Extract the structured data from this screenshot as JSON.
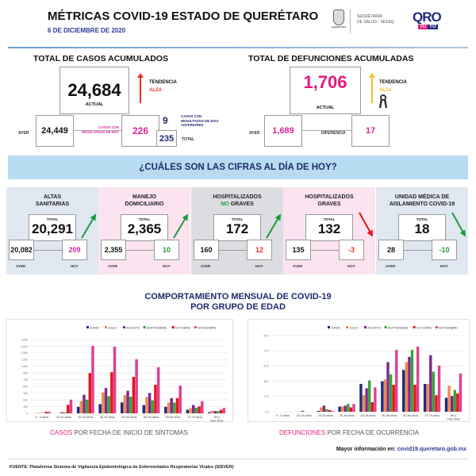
{
  "header": {
    "title": "MÉTRICAS COVID-19 ESTADO DE QUERÉTARO",
    "date": "6 DE DICIEMBRE DE 2020",
    "logo_gov": "QUERÉTARO",
    "secretaria": "SECRETARÍA",
    "secretaria2": "DE SALUD - SESEQ",
    "logo_qro": "QRO",
    "logo_tuyo_1": "TÚ",
    "logo_tuyo_2": "YO"
  },
  "casos": {
    "title": "TOTAL DE CASOS ACUMULADOS",
    "actual": "24,684",
    "actual_label": "ACTUAL",
    "tendencia": "TENDENCIA",
    "tendencia_val": "ALZA",
    "ayer_label": "AYER",
    "ayer": "24,449",
    "hoy_label": "CASOS CON RESULTADOS DE HOY",
    "hoy": "226",
    "anteriores": "9",
    "anteriores_label": "CASOS CON RESULTADOS DE DÍAS ANTERIORES",
    "total": "235",
    "total_label": "TOTAL"
  },
  "defunciones": {
    "title": "TOTAL DE DEFUNCIONES ACUMULADAS",
    "actual": "1,706",
    "actual_label": "ACTUAL",
    "tendencia": "TENDENCIA",
    "tendencia_val": "ALZA",
    "ayer_label": "AYER",
    "ayer": "1,689",
    "diferencia_label": "DIFERENCIA",
    "diferencia": "17"
  },
  "banner": "¿CUÁLES SON LAS CIFRAS AL DÍA DE HOY?",
  "cards": [
    {
      "title1": "ALTAS",
      "title2": "SANITARIAS",
      "title2_pre": "",
      "total_label": "TOTAL",
      "total": "20,291",
      "ayer": "20,082",
      "hoy": "209",
      "ayer_label": "AYER",
      "hoy_label": "HOY",
      "hoy_color": "#d8259a",
      "trend": "up",
      "trend_color": "#1f9a3a",
      "bg": "#dfe7f1"
    },
    {
      "title1": "MANEJO",
      "title2": "DOMICILIARIO",
      "title2_pre": "",
      "total_label": "TOTAL",
      "total": "2,365",
      "ayer": "2,355",
      "hoy": "10",
      "ayer_label": "AYER",
      "hoy_label": "HOY",
      "hoy_color": "#1f9a3a",
      "trend": "up",
      "trend_color": "#1f9a3a",
      "bg": "#fbe4f0"
    },
    {
      "title1": "HOSPITALIZADOS",
      "title2": "GRAVES",
      "title2_pre": "NO ",
      "total_label": "TOTAL",
      "total": "172",
      "ayer": "160",
      "hoy": "12",
      "ayer_label": "AYER",
      "hoy_label": "HOY",
      "hoy_color": "#e53322",
      "trend": "up",
      "trend_color": "#1f9a3a",
      "bg": "#dcdde1"
    },
    {
      "title1": "HOSPITALIZADOS",
      "title2": "GRAVES",
      "title2_pre": "",
      "total_label": "TOTAL",
      "total": "132",
      "ayer": "135",
      "hoy": "-3",
      "ayer_label": "AYER",
      "hoy_label": "HOY",
      "hoy_color": "#e53322",
      "trend": "down",
      "trend_color": "#e0141b",
      "bg": "#fbe4f0"
    },
    {
      "title1": "UNIDAD MÉDICA DE",
      "title2": "AISLAMIENTO COVID-19",
      "title2_pre": "",
      "total_label": "TOTAL",
      "total": "18",
      "ayer": "28",
      "hoy": "-10",
      "ayer_label": "AYER",
      "hoy_label": "HOY",
      "hoy_color": "#1f9a3a",
      "trend": "down",
      "trend_color": "#1f9a3a",
      "bg": "#dfe7f1"
    }
  ],
  "section_title_1": "COMPORTAMIENTO MENSUAL DE COVID-19",
  "section_title_2": "POR GRUPO DE EDAD",
  "chart_data": [
    {
      "type": "bar",
      "categories": [
        "0 - 9 años",
        "10-19 años",
        "20-29 años",
        "30-39 años",
        "40-49 años",
        "50-59 años",
        "60-69 años",
        "70-79 años",
        "80 y mas años"
      ],
      "yticks": [
        "0",
        "150",
        "300",
        "450",
        "600",
        "750",
        "900",
        "1,050",
        "1,200",
        "1,350",
        "1,500",
        "1,650"
      ],
      "ylim": [
        0,
        1650
      ],
      "grid": true,
      "legend": "top",
      "series": [
        {
          "name": "JUNIO",
          "color": "#1f2a80",
          "values": [
            0,
            0,
            145,
            205,
            245,
            185,
            145,
            80,
            25
          ]
        },
        {
          "name": "JULIO",
          "color": "#f08a4b",
          "values": [
            10,
            10,
            275,
            470,
            410,
            365,
            240,
            120,
            60
          ]
        },
        {
          "name": "AGOSTO",
          "color": "#7b2a8c",
          "values": [
            5,
            25,
            415,
            565,
            505,
            455,
            340,
            185,
            50
          ]
        },
        {
          "name": "SEPTIEMBRE",
          "color": "#3aa33a",
          "values": [
            5,
            20,
            305,
            385,
            370,
            290,
            240,
            125,
            50
          ]
        },
        {
          "name": "OCTUBRE",
          "color": "#e8141b",
          "values": [
            35,
            190,
            900,
            920,
            815,
            640,
            340,
            155,
            80
          ]
        },
        {
          "name": "NOVIEMBRE",
          "color": "#e0408f",
          "values": [
            35,
            305,
            1505,
            1490,
            1210,
            1030,
            620,
            270,
            120
          ]
        }
      ],
      "caption_highlight": "CASOS",
      "caption_rest": " POR FECHA DE INICIO DE SÍNTOMAS"
    },
    {
      "type": "bar",
      "categories": [
        "0 - 9 años",
        "10-19 años",
        "20-29 años",
        "30-39 años",
        "40-49 años",
        "50-59 años",
        "60-69 años",
        "70-79 años",
        "80 y más años"
      ],
      "yticks": [
        "0.0",
        "17.5",
        "35.0",
        "52.5",
        "70.0",
        "87.5"
      ],
      "ylim": [
        0,
        87.5
      ],
      "grid": true,
      "legend": "top",
      "series": [
        {
          "name": "JUNIO",
          "color": "#1f2a80",
          "values": [
            0,
            0,
            1,
            6,
            32,
            35,
            48,
            32,
            16
          ]
        },
        {
          "name": "JULIO",
          "color": "#f08a4b",
          "values": [
            0,
            0,
            5,
            6,
            19,
            37,
            57,
            32,
            30
          ]
        },
        {
          "name": "AGOSTO",
          "color": "#7b2a8c",
          "values": [
            0,
            1,
            7,
            7,
            27,
            57,
            63,
            65,
            18
          ]
        },
        {
          "name": "SEPTIEMBRE",
          "color": "#3aa33a",
          "values": [
            0,
            0,
            3,
            9,
            36,
            43,
            71,
            46,
            25
          ]
        },
        {
          "name": "OCTUBRE",
          "color": "#e8141b",
          "values": [
            0,
            0,
            2,
            5,
            11,
            31,
            31,
            19,
            21
          ]
        },
        {
          "name": "NOVIEMBRE",
          "color": "#e0408f",
          "values": [
            0,
            0,
            1,
            9,
            28,
            71,
            75,
            53,
            44
          ]
        }
      ],
      "caption_highlight": "DEFUNCIONES",
      "caption_rest": " POR FECHA DE OCURRENCIA"
    }
  ],
  "more_info_label": "Mayor información en:",
  "more_info_url": "covid19.queretaro.gob.mx",
  "footer": "FUENTE: Plataforma Sistema  de Vigilancia Epidemiológica de Enfermedades Respiratorias Virales (SISVER)",
  "colors": {
    "pink": "#e6197e",
    "navy": "#1f2a6b",
    "red": "#e53322",
    "yellow": "#f3c226",
    "green": "#1f9a3a"
  }
}
